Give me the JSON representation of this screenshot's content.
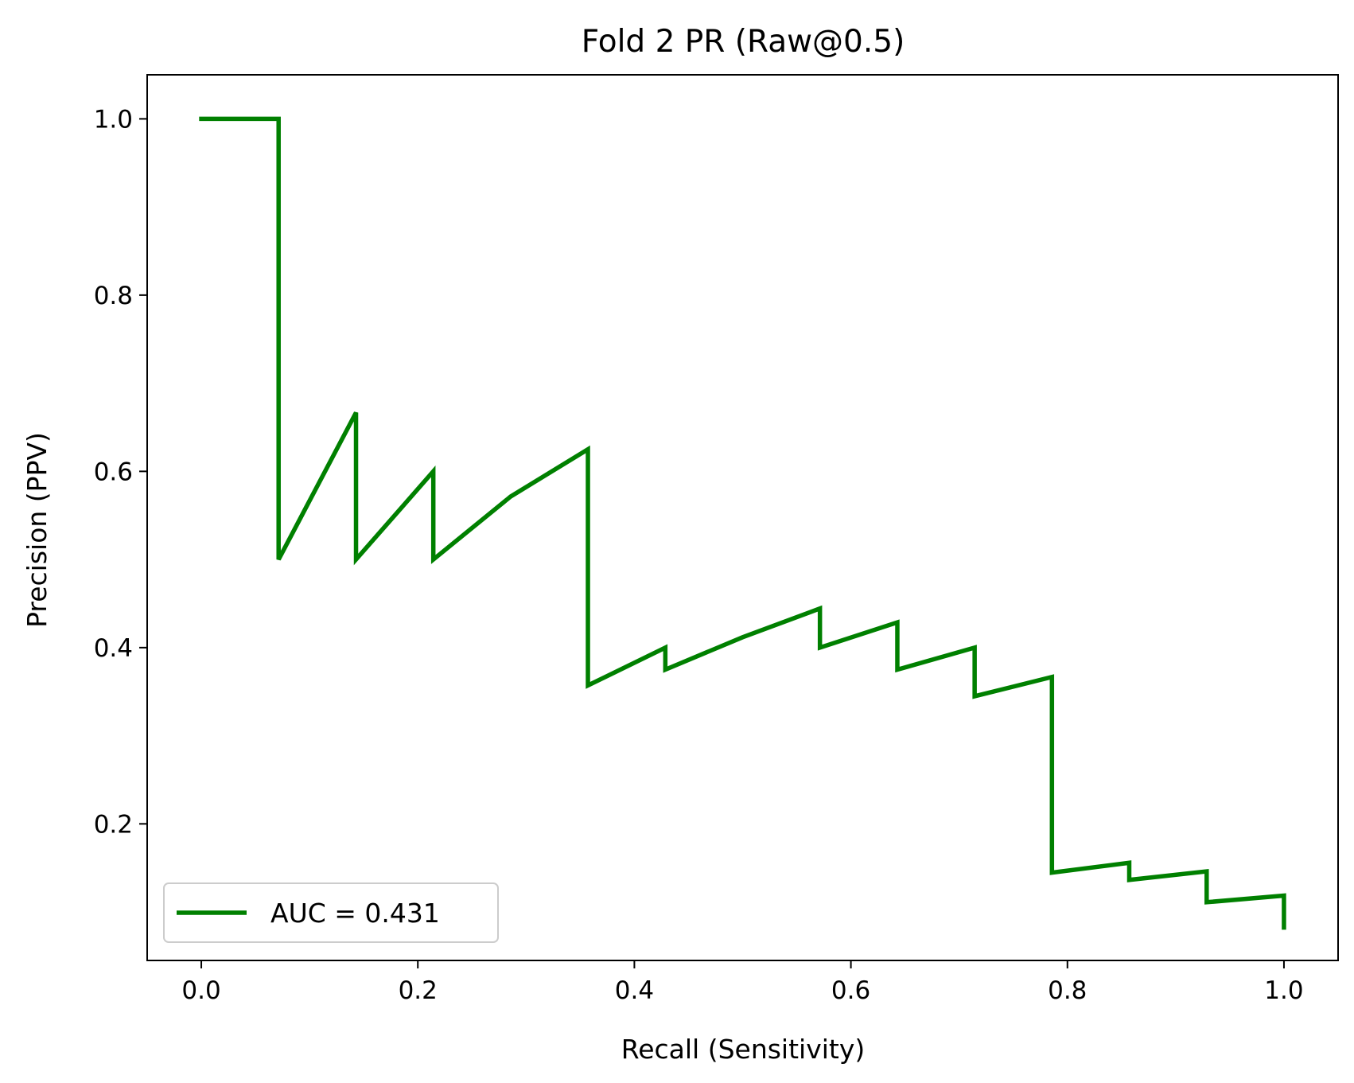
{
  "chart_data": {
    "type": "line",
    "title": "Fold 2 PR (Raw@0.5)",
    "xlabel": "Recall (Sensitivity)",
    "ylabel": "Precision (PPV)",
    "xlim": [
      -0.05,
      1.05
    ],
    "ylim": [
      0.045,
      1.05
    ],
    "xticks": [
      0.0,
      0.2,
      0.4,
      0.6,
      0.8,
      1.0
    ],
    "xtick_labels": [
      "0.0",
      "0.2",
      "0.4",
      "0.6",
      "0.8",
      "1.0"
    ],
    "yticks": [
      0.2,
      0.4,
      0.6,
      0.8,
      1.0
    ],
    "ytick_labels": [
      "0.2",
      "0.4",
      "0.6",
      "0.8",
      "1.0"
    ],
    "grid": false,
    "legend_position": "lower-left",
    "series": [
      {
        "name": "AUC = 0.431",
        "color": "#008000",
        "points": [
          [
            0.0,
            1.0
          ],
          [
            0.0714,
            1.0
          ],
          [
            0.0714,
            0.5
          ],
          [
            0.1429,
            0.6667
          ],
          [
            0.1429,
            0.5
          ],
          [
            0.2143,
            0.6
          ],
          [
            0.2143,
            0.5
          ],
          [
            0.2857,
            0.5714
          ],
          [
            0.3571,
            0.625
          ],
          [
            0.3571,
            0.3571
          ],
          [
            0.4286,
            0.4
          ],
          [
            0.4286,
            0.375
          ],
          [
            0.5,
            0.4118
          ],
          [
            0.5714,
            0.4444
          ],
          [
            0.5714,
            0.4
          ],
          [
            0.6429,
            0.4286
          ],
          [
            0.6429,
            0.375
          ],
          [
            0.7143,
            0.4
          ],
          [
            0.7143,
            0.3448
          ],
          [
            0.7857,
            0.3667
          ],
          [
            0.7857,
            0.1447
          ],
          [
            0.8571,
            0.1558
          ],
          [
            0.8571,
            0.1364
          ],
          [
            0.9286,
            0.1461
          ],
          [
            0.9286,
            0.1111
          ],
          [
            1.0,
            0.1186
          ],
          [
            1.0,
            0.0824
          ]
        ]
      }
    ]
  }
}
